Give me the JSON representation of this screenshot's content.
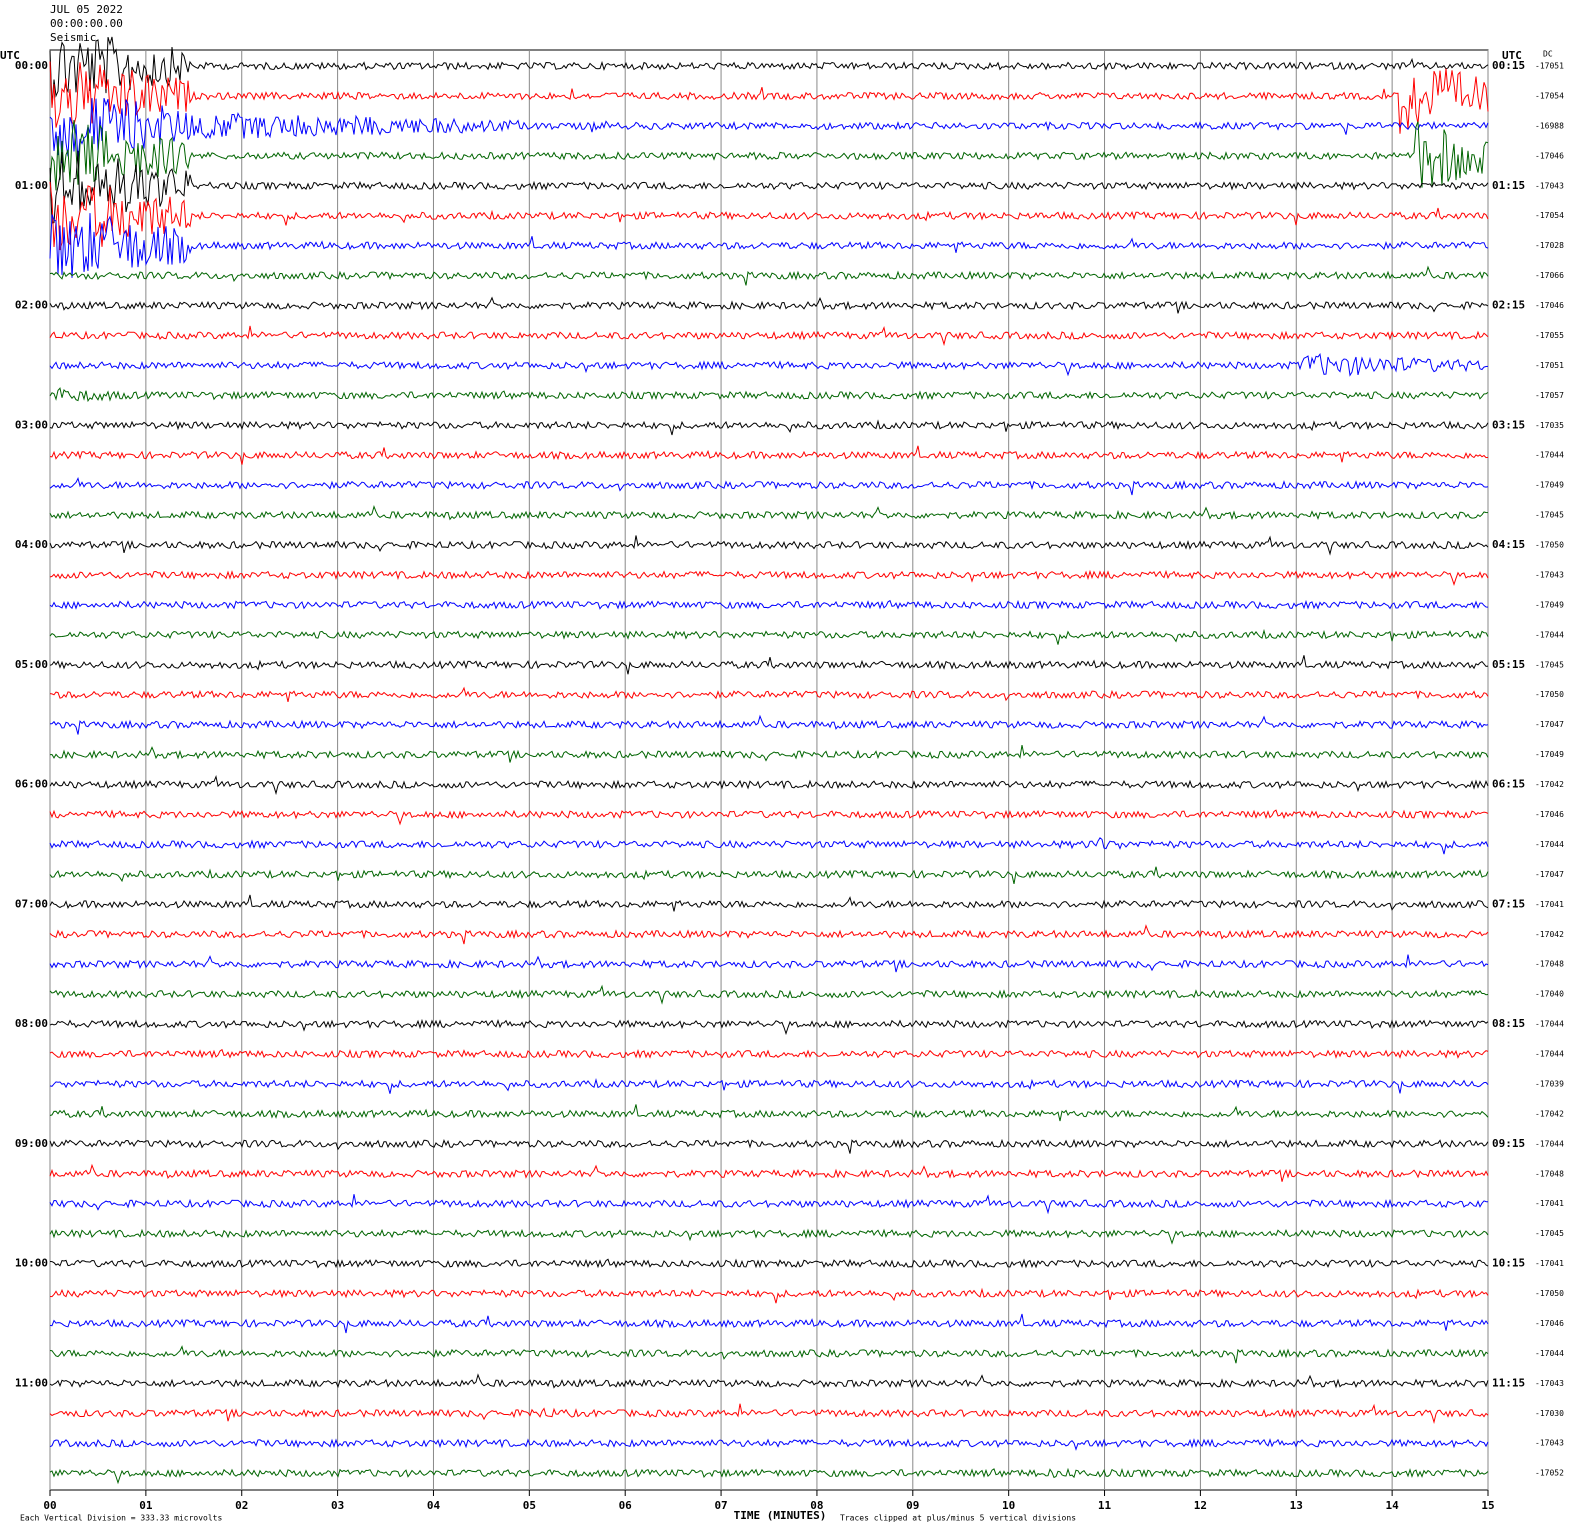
{
  "chart_data": {
    "type": "helicorder",
    "header": [
      "JUL 05 2022",
      "00:00:00.00",
      "Seismic"
    ],
    "left_unit": "UTC",
    "right_unit": "UTC",
    "dc_unit": "DC",
    "row_labels_left": [
      "00:00",
      "01:00",
      "02:00",
      "03:00",
      "04:00",
      "05:00",
      "06:00",
      "07:00",
      "08:00",
      "09:00",
      "10:00",
      "11:00"
    ],
    "row_labels_right": [
      "00:15",
      "01:15",
      "02:15",
      "03:15",
      "04:15",
      "05:15",
      "06:15",
      "07:15",
      "08:15",
      "09:15",
      "10:15",
      "11:15"
    ],
    "dc_values": [
      -17051,
      -17054,
      -16988,
      -17046,
      -17043,
      -17054,
      -17028,
      -17066,
      -17046,
      -17055,
      -17051,
      -17057,
      -17035,
      -17044,
      -17049,
      -17045,
      -17050,
      -17043,
      -17049,
      -17044,
      -17045,
      -17050,
      -17047,
      -17049,
      -17042,
      -17046,
      -17044,
      -17047,
      -17041,
      -17042,
      -17048,
      -17040,
      -17044,
      -17044,
      -17039,
      -17042,
      -17044,
      -17048,
      -17041,
      -17045,
      -17041,
      -17050,
      -17046,
      -17044,
      -17043,
      -17030,
      -17043,
      -17052
    ],
    "trace_colors": [
      "#000000",
      "#ff0000",
      "#0000ff",
      "#006400"
    ],
    "xlim": [
      0,
      15
    ],
    "xticks": [
      {
        "value": 0,
        "label": "00"
      },
      {
        "value": 1,
        "label": "01"
      },
      {
        "value": 2,
        "label": "02"
      },
      {
        "value": 3,
        "label": "03"
      },
      {
        "value": 4,
        "label": "04"
      },
      {
        "value": 5,
        "label": "05"
      },
      {
        "value": 6,
        "label": "06"
      },
      {
        "value": 7,
        "label": "07"
      },
      {
        "value": 8,
        "label": "08"
      },
      {
        "value": 9,
        "label": "09"
      },
      {
        "value": 10,
        "label": "10"
      },
      {
        "value": 11,
        "label": "11"
      },
      {
        "value": 12,
        "label": "12"
      },
      {
        "value": 13,
        "label": "13"
      },
      {
        "value": 14,
        "label": "14"
      },
      {
        "value": 15,
        "label": "15"
      }
    ],
    "xlabel": "TIME (MINUTES)",
    "scale_note": "Each Vertical Division =  333.33 microvolts",
    "clip_note": "Traces clipped at plus/minus 5 vertical divisions"
  }
}
